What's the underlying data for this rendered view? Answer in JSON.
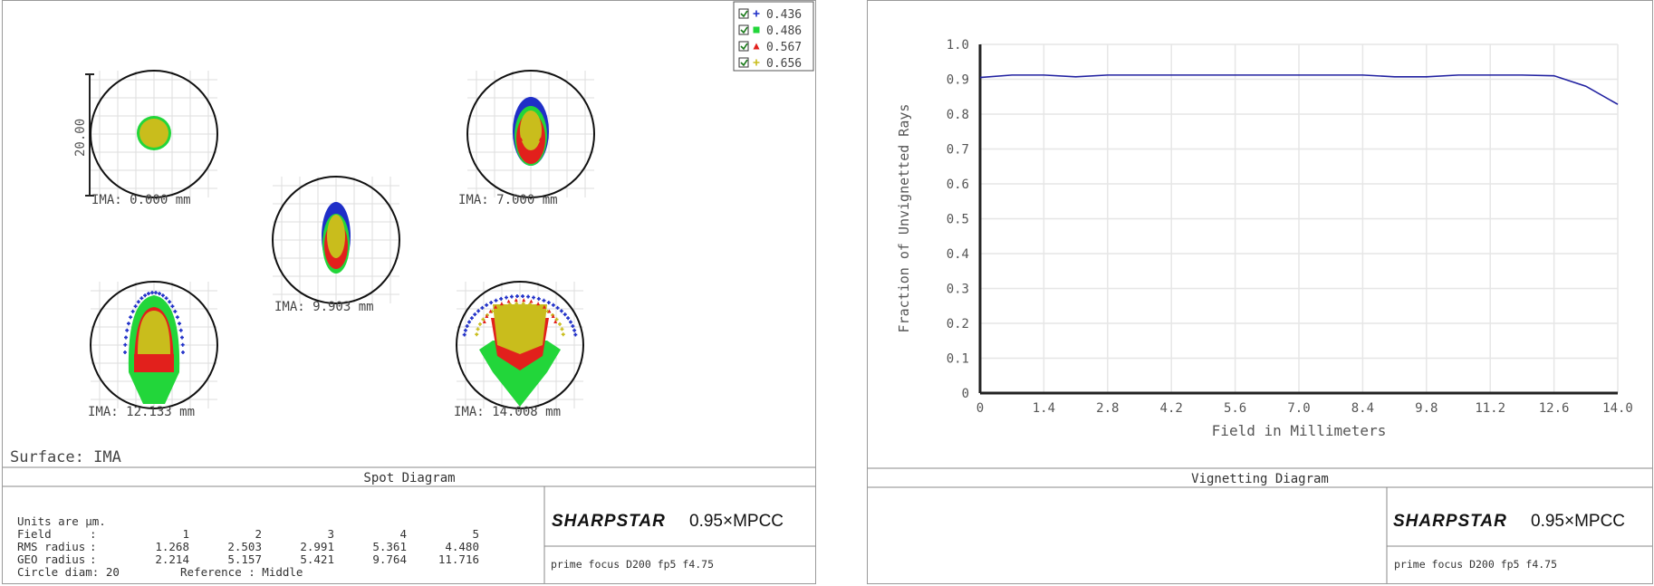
{
  "spot": {
    "legend": [
      {
        "label": "0.436",
        "color": "#1f2fc8",
        "marker": "plus"
      },
      {
        "label": "0.486",
        "color": "#22d63a",
        "marker": "square"
      },
      {
        "label": "0.567",
        "color": "#e2201c",
        "marker": "triangle"
      },
      {
        "label": "0.656",
        "color": "#c9bd1c",
        "marker": "plus"
      }
    ],
    "scale_label": "20.00",
    "spots": [
      {
        "label": "IMA: 0.000 mm"
      },
      {
        "label": "IMA: 7.000 mm"
      },
      {
        "label": "IMA: 9.903 mm"
      },
      {
        "label": "IMA: 12.133 mm"
      },
      {
        "label": "IMA: 14.008 mm"
      }
    ],
    "surface": "Surface: IMA",
    "title": "Spot Diagram",
    "units": "Units are µm.",
    "table": {
      "field_label": "Field",
      "rms_label": "RMS radius",
      "geo_label": "GEO radius",
      "fields": [
        "1",
        "2",
        "3",
        "4",
        "5"
      ],
      "rms": [
        "1.268",
        "2.503",
        "2.991",
        "5.361",
        "4.480"
      ],
      "geo": [
        "2.214",
        "5.157",
        "5.421",
        "9.764",
        "11.716"
      ],
      "circle": "Circle diam: 20",
      "reference": "Reference  : Middle"
    },
    "brand": "SHARPSTAR",
    "product": "0.95×MPCC",
    "note": "prime focus D200 fp5 f4.75"
  },
  "chart_data": {
    "type": "line",
    "title": "Vignetting Diagram",
    "xlabel": "Field in Millimeters",
    "ylabel": "Fraction of Unvignetted Rays",
    "xlim": [
      0,
      14.0
    ],
    "ylim": [
      0,
      1.0
    ],
    "xticks": [
      "0",
      "1.4",
      "2.8",
      "4.2",
      "5.6",
      "7.0",
      "8.4",
      "9.8",
      "11.2",
      "12.6",
      "14.0"
    ],
    "yticks": [
      "0",
      "0.1",
      "0.2",
      "0.3",
      "0.4",
      "0.5",
      "0.6",
      "0.7",
      "0.8",
      "0.9",
      "1.0"
    ],
    "grid": true,
    "series": [
      {
        "color": "#2020a0",
        "x": [
          0,
          0.7,
          1.4,
          2.1,
          2.8,
          3.5,
          4.2,
          4.9,
          5.6,
          6.3,
          7.0,
          7.7,
          8.4,
          9.1,
          9.8,
          10.5,
          11.2,
          11.9,
          12.6,
          13.3,
          14.0
        ],
        "y": [
          0.905,
          0.912,
          0.912,
          0.907,
          0.912,
          0.912,
          0.912,
          0.912,
          0.912,
          0.912,
          0.912,
          0.912,
          0.912,
          0.907,
          0.907,
          0.912,
          0.912,
          0.912,
          0.91,
          0.88,
          0.828
        ]
      }
    ],
    "brand": "SHARPSTAR",
    "product": "0.95×MPCC",
    "note": "prime focus D200 fp5 f4.75"
  }
}
